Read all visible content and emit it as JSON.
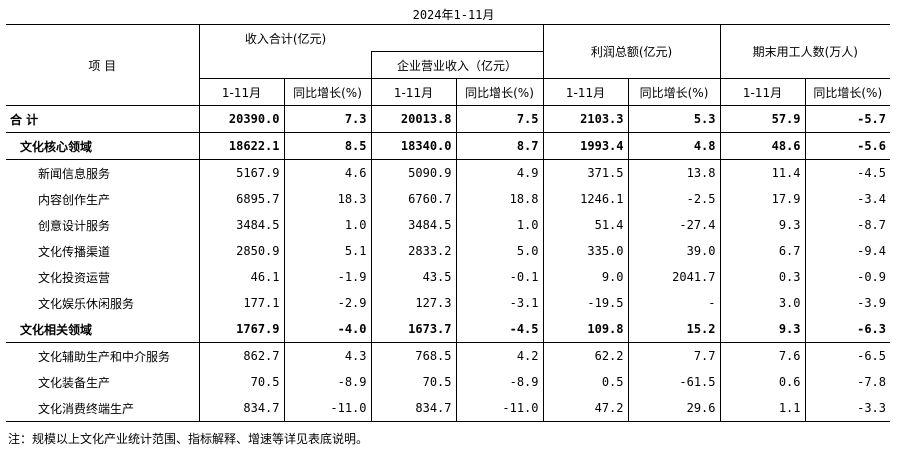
{
  "title": "2024年1-11月",
  "headers": {
    "item": "项    目",
    "groups": {
      "income_total": "收入合计(亿元)",
      "enterprise_income": "企业营业收入（亿元）",
      "profit": "利润总额(亿元)",
      "employment": "期末用工人数(万人)"
    },
    "period": "1-11月",
    "yoy": "同比增长(%)"
  },
  "rows": [
    {
      "name": "合    计",
      "level": "total",
      "v": [
        "20390.0",
        "7.3",
        "20013.8",
        "7.5",
        "2103.3",
        "5.3",
        "57.9",
        "-5.7"
      ]
    },
    {
      "name": "文化核心领域",
      "level": "l1",
      "v": [
        "18622.1",
        "8.5",
        "18340.0",
        "8.7",
        "1993.4",
        "4.8",
        "48.6",
        "-5.6"
      ]
    },
    {
      "name": "新闻信息服务",
      "level": "l2",
      "v": [
        "5167.9",
        "4.6",
        "5090.9",
        "4.9",
        "371.5",
        "13.8",
        "11.4",
        "-4.5"
      ]
    },
    {
      "name": "内容创作生产",
      "level": "l2",
      "v": [
        "6895.7",
        "18.3",
        "6760.7",
        "18.8",
        "1246.1",
        "-2.5",
        "17.9",
        "-3.4"
      ]
    },
    {
      "name": "创意设计服务",
      "level": "l2",
      "v": [
        "3484.5",
        "1.0",
        "3484.5",
        "1.0",
        "51.4",
        "-27.4",
        "9.3",
        "-8.7"
      ]
    },
    {
      "name": "文化传播渠道",
      "level": "l2",
      "v": [
        "2850.9",
        "5.1",
        "2833.2",
        "5.0",
        "335.0",
        "39.0",
        "6.7",
        "-9.4"
      ]
    },
    {
      "name": "文化投资运营",
      "level": "l2",
      "v": [
        "46.1",
        "-1.9",
        "43.5",
        "-0.1",
        "9.0",
        "2041.7",
        "0.3",
        "-0.9"
      ]
    },
    {
      "name": "文化娱乐休闲服务",
      "level": "l2",
      "v": [
        "177.1",
        "-2.9",
        "127.3",
        "-3.1",
        "-19.5",
        "-",
        "3.0",
        "-3.9"
      ]
    },
    {
      "name": "文化相关领域",
      "level": "l1",
      "v": [
        "1767.9",
        "-4.0",
        "1673.7",
        "-4.5",
        "109.8",
        "15.2",
        "9.3",
        "-6.3"
      ]
    },
    {
      "name": "文化辅助生产和中介服务",
      "level": "l2",
      "v": [
        "862.7",
        "4.3",
        "768.5",
        "4.2",
        "62.2",
        "7.7",
        "7.6",
        "-6.5"
      ]
    },
    {
      "name": "文化装备生产",
      "level": "l2",
      "v": [
        "70.5",
        "-8.9",
        "70.5",
        "-8.9",
        "0.5",
        "-61.5",
        "0.6",
        "-7.8"
      ]
    },
    {
      "name": "文化消费终端生产",
      "level": "l2",
      "v": [
        "834.7",
        "-11.0",
        "834.7",
        "-11.0",
        "47.2",
        "29.6",
        "1.1",
        "-3.3"
      ]
    }
  ],
  "note": "注：规模以上文化产业统计范围、指标解释、增速等详见表底说明。"
}
